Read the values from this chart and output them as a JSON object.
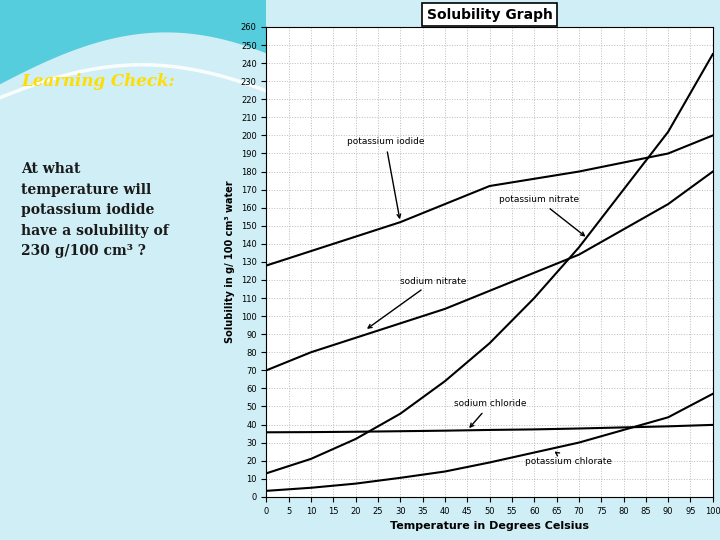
{
  "title": "Solubility Graph",
  "xlabel": "Temperature in Degrees Celsius",
  "ylabel": "Solubility in g/ 100 cm³ water",
  "xlim": [
    0,
    100
  ],
  "ylim": [
    0,
    260
  ],
  "xticks": [
    0,
    5,
    10,
    15,
    20,
    25,
    30,
    35,
    40,
    45,
    50,
    55,
    60,
    65,
    70,
    75,
    80,
    85,
    90,
    95,
    100
  ],
  "yticks": [
    0,
    10,
    20,
    30,
    40,
    50,
    60,
    70,
    80,
    90,
    100,
    110,
    120,
    130,
    140,
    150,
    160,
    170,
    180,
    190,
    200,
    210,
    220,
    230,
    240,
    250,
    260
  ],
  "potassium_iodide": {
    "x": [
      0,
      10,
      20,
      30,
      40,
      50,
      60,
      70,
      80,
      90,
      100
    ],
    "y": [
      128,
      136,
      144,
      152,
      162,
      172,
      176,
      180,
      185,
      190,
      200
    ],
    "label": "potassium iodide",
    "color": "#000000"
  },
  "potassium_nitrate": {
    "x": [
      0,
      10,
      20,
      30,
      40,
      50,
      60,
      70,
      80,
      90,
      100
    ],
    "y": [
      13,
      21,
      32,
      46,
      64,
      85,
      110,
      138,
      170,
      202,
      245
    ],
    "label": "potassium nitrate",
    "color": "#000000"
  },
  "sodium_nitrate": {
    "x": [
      0,
      10,
      20,
      30,
      40,
      50,
      60,
      70,
      80,
      90,
      100
    ],
    "y": [
      70,
      80,
      88,
      96,
      104,
      114,
      124,
      134,
      148,
      162,
      180
    ],
    "label": "sodium nitrate",
    "color": "#000000"
  },
  "sodium_chloride": {
    "x": [
      0,
      10,
      20,
      30,
      40,
      50,
      60,
      70,
      80,
      90,
      100
    ],
    "y": [
      35.7,
      35.8,
      36.0,
      36.3,
      36.6,
      37.0,
      37.3,
      37.8,
      38.4,
      39.0,
      39.8
    ],
    "label": "sodium chloride",
    "color": "#000000"
  },
  "potassium_chlorate": {
    "x": [
      0,
      10,
      20,
      30,
      40,
      50,
      60,
      70,
      80,
      90,
      100
    ],
    "y": [
      3.3,
      5.0,
      7.3,
      10.5,
      14.0,
      19.0,
      24.5,
      30.0,
      37.0,
      44.0,
      57.0
    ],
    "label": "potassium chlorate",
    "color": "#000000"
  },
  "left_panel_bg": "#e8f4f8",
  "left_panel_text": "Learning Check:",
  "left_panel_text_color": "#ffdd00",
  "left_panel_body": "At what\ntemperature will\npotassium iodide\nhave a solubility of\n230 g/100 cm³ ?",
  "left_panel_body_color": "#1a1a1a",
  "graph_bg": "#ffffff",
  "grid_color": "#aaaaaa",
  "title_box": true
}
